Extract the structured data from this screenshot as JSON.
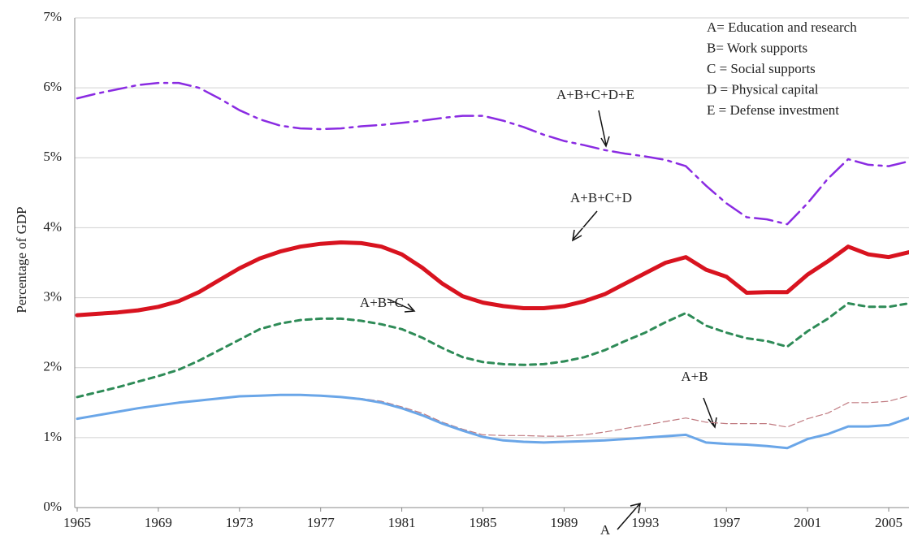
{
  "chart_data": {
    "type": "line",
    "y_label": "Percentage of GDP",
    "x": [
      1965,
      1966,
      1967,
      1968,
      1969,
      1970,
      1971,
      1972,
      1973,
      1974,
      1975,
      1976,
      1977,
      1978,
      1979,
      1980,
      1981,
      1982,
      1983,
      1984,
      1985,
      1986,
      1987,
      1988,
      1989,
      1990,
      1991,
      1992,
      1993,
      1994,
      1995,
      1996,
      1997,
      1998,
      1999,
      2000,
      2001,
      2002,
      2003,
      2004,
      2005,
      2006
    ],
    "xlim": [
      1965,
      2006
    ],
    "xticks": [
      1965,
      1969,
      1973,
      1977,
      1981,
      1985,
      1989,
      1993,
      1997,
      2001,
      2005
    ],
    "ylim": [
      0,
      7
    ],
    "yticks": [
      {
        "value": 0,
        "label": "0%"
      },
      {
        "value": 1,
        "label": "1%"
      },
      {
        "value": 2,
        "label": "2%"
      },
      {
        "value": 3,
        "label": "3%"
      },
      {
        "value": 4,
        "label": "4%"
      },
      {
        "value": 5,
        "label": "5%"
      },
      {
        "value": 6,
        "label": "6%"
      },
      {
        "value": 7,
        "label": "7%"
      }
    ],
    "grid": true,
    "key": [
      "A= Education and research",
      "B= Work supports",
      "C = Social supports",
      "D = Physical capital",
      "E = Defense investment"
    ],
    "series": [
      {
        "name": "A+B+C+D+E",
        "color": "#8a2be2",
        "dash": "22 7 4 7",
        "width": 2.5,
        "values": [
          5.85,
          5.92,
          5.98,
          6.04,
          6.07,
          6.07,
          6.0,
          5.85,
          5.68,
          5.55,
          5.46,
          5.42,
          5.41,
          5.42,
          5.45,
          5.47,
          5.5,
          5.53,
          5.57,
          5.6,
          5.6,
          5.53,
          5.44,
          5.33,
          5.24,
          5.18,
          5.11,
          5.06,
          5.02,
          4.97,
          4.88,
          4.6,
          4.35,
          4.15,
          4.12,
          4.05,
          4.35,
          4.7,
          4.98,
          4.9,
          4.88,
          4.95
        ]
      },
      {
        "name": "A+B+C+D",
        "color": "#d8131f",
        "dash": "none",
        "width": 5,
        "values": [
          2.75,
          2.77,
          2.79,
          2.82,
          2.87,
          2.95,
          3.08,
          3.25,
          3.42,
          3.56,
          3.66,
          3.73,
          3.77,
          3.79,
          3.78,
          3.73,
          3.62,
          3.43,
          3.2,
          3.02,
          2.93,
          2.88,
          2.85,
          2.85,
          2.88,
          2.95,
          3.05,
          3.2,
          3.35,
          3.5,
          3.58,
          3.4,
          3.3,
          3.07,
          3.08,
          3.08,
          3.33,
          3.52,
          3.73,
          3.62,
          3.58,
          3.65
        ]
      },
      {
        "name": "A+B+C",
        "color": "#2e8b57",
        "dash": "7 6",
        "width": 3,
        "values": [
          1.58,
          1.65,
          1.72,
          1.8,
          1.88,
          1.97,
          2.1,
          2.25,
          2.4,
          2.55,
          2.63,
          2.68,
          2.7,
          2.7,
          2.67,
          2.62,
          2.55,
          2.43,
          2.28,
          2.15,
          2.08,
          2.05,
          2.04,
          2.05,
          2.09,
          2.15,
          2.25,
          2.38,
          2.5,
          2.65,
          2.78,
          2.6,
          2.5,
          2.42,
          2.38,
          2.3,
          2.52,
          2.7,
          2.92,
          2.87,
          2.87,
          2.92
        ]
      },
      {
        "name": "A+B",
        "color": "#c07a80",
        "dash": "8 4",
        "width": 1.2,
        "values": [
          1.27,
          1.32,
          1.37,
          1.42,
          1.46,
          1.5,
          1.53,
          1.56,
          1.59,
          1.6,
          1.61,
          1.61,
          1.6,
          1.58,
          1.56,
          1.52,
          1.44,
          1.35,
          1.22,
          1.12,
          1.04,
          1.03,
          1.03,
          1.02,
          1.02,
          1.04,
          1.08,
          1.13,
          1.18,
          1.23,
          1.28,
          1.22,
          1.2,
          1.2,
          1.2,
          1.15,
          1.27,
          1.35,
          1.5,
          1.5,
          1.52,
          1.6
        ]
      },
      {
        "name": "A",
        "color": "#6aa6e8",
        "dash": "none",
        "width": 3,
        "values": [
          1.27,
          1.32,
          1.37,
          1.42,
          1.46,
          1.5,
          1.53,
          1.56,
          1.59,
          1.6,
          1.61,
          1.61,
          1.6,
          1.58,
          1.55,
          1.5,
          1.42,
          1.32,
          1.2,
          1.1,
          1.01,
          0.96,
          0.94,
          0.93,
          0.94,
          0.95,
          0.96,
          0.98,
          1.0,
          1.02,
          1.04,
          0.93,
          0.91,
          0.9,
          0.88,
          0.85,
          0.98,
          1.05,
          1.16,
          1.16,
          1.18,
          1.28
        ]
      }
    ]
  }
}
